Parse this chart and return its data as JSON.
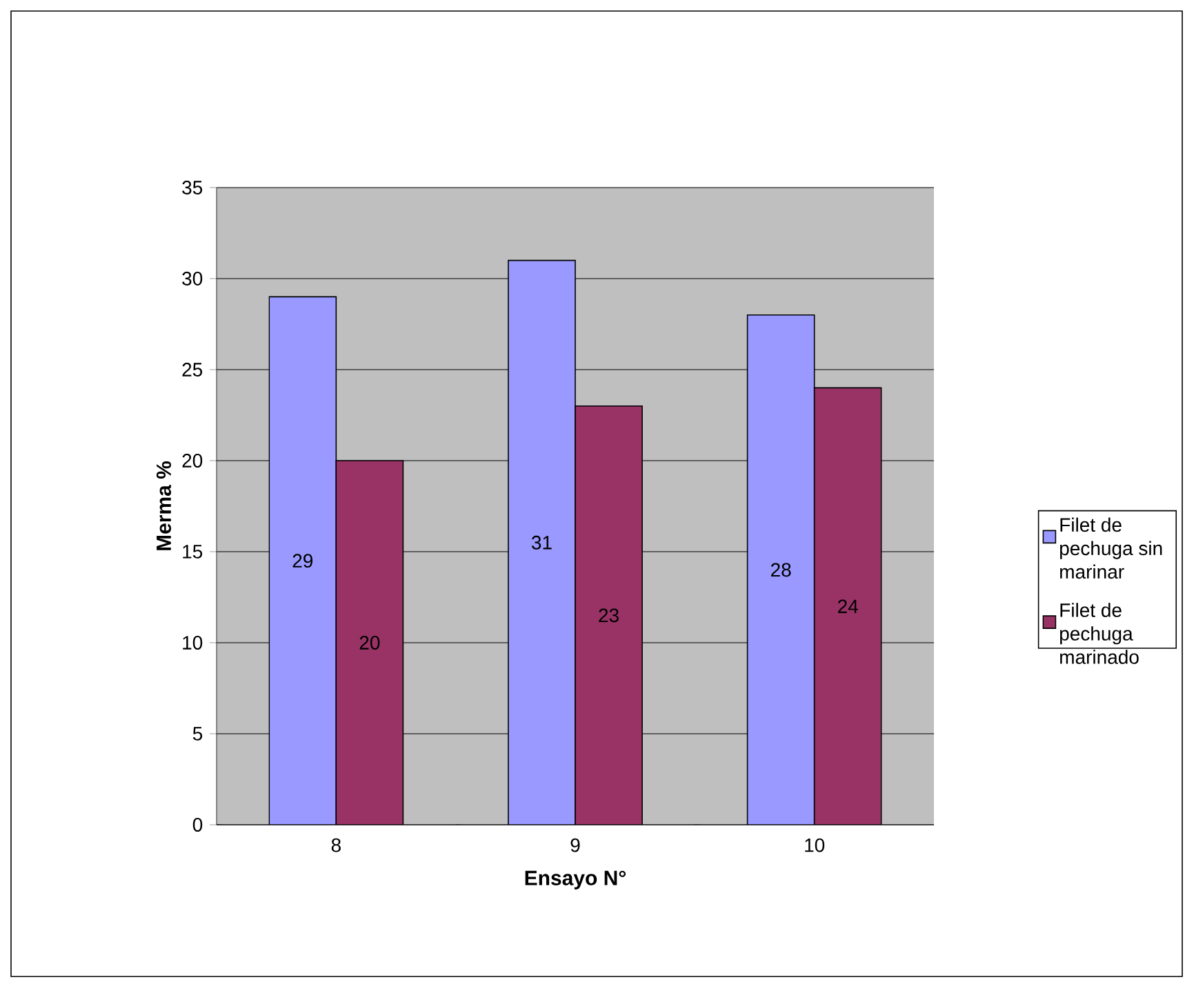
{
  "chart_data": {
    "type": "bar",
    "xlabel": "Ensayo N°",
    "ylabel": "Merma %",
    "categories": [
      "8",
      "9",
      "10"
    ],
    "series": [
      {
        "name": "Filet de pechuga sin marinar",
        "color": "#9999ff",
        "values": [
          29,
          31,
          28
        ]
      },
      {
        "name": "Filet de pechuga marinado",
        "color": "#993366",
        "values": [
          20,
          23,
          24
        ]
      }
    ],
    "ylim": [
      0,
      35
    ],
    "yticks": [
      0,
      5,
      10,
      15,
      20,
      25,
      30,
      35
    ],
    "grid": "y",
    "legend": "right",
    "data_labels": true
  }
}
